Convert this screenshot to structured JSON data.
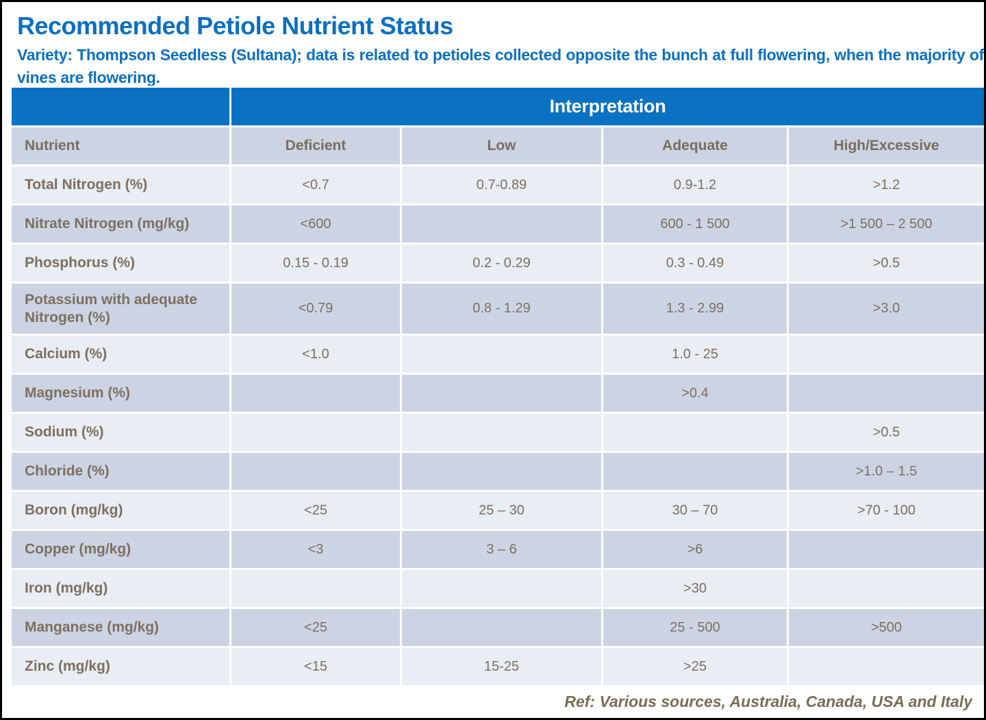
{
  "page": {
    "title": "Recommended Petiole Nutrient Status",
    "subtitle": "Variety: Thompson Seedless (Sultana); data is related to petioles collected opposite the bunch at full flowering, when the majority of vines are flowering.",
    "footer": "Ref: Various sources, Australia, Canada, USA and Italy"
  },
  "colors": {
    "header_blue": "#0A72C1",
    "title_blue": "#0A70C1",
    "row_light": "#E9EDF4",
    "row_dark": "#CCD4E4",
    "cell_text": "#7C6F5D",
    "footer_text": "#7B6B53"
  },
  "table": {
    "group_header": "Interpretation",
    "columns": [
      "Nutrient",
      "Deficient",
      "Low",
      "Adequate",
      "High/Excessive"
    ],
    "rows": [
      {
        "nutrient": "Total Nitrogen (%)",
        "deficient": "<0.7",
        "low": "0.7-0.89",
        "adequate": "0.9-1.2",
        "high": ">1.2"
      },
      {
        "nutrient": "Nitrate Nitrogen (mg/kg)",
        "deficient": "<600",
        "low": "",
        "adequate": "600 - 1 500",
        "high": ">1 500 – 2 500"
      },
      {
        "nutrient": "Phosphorus (%)",
        "deficient": "0.15 - 0.19",
        "low": "0.2 - 0.29",
        "adequate": "0.3 - 0.49",
        "high": ">0.5"
      },
      {
        "nutrient": "Potassium with adequate Nitrogen (%)",
        "deficient": "<0.79",
        "low": "0.8 - 1.29",
        "adequate": "1.3 - 2.99",
        "high": ">3.0"
      },
      {
        "nutrient": "Calcium (%)",
        "deficient": "<1.0",
        "low": "",
        "adequate": "1.0 - 25",
        "high": ""
      },
      {
        "nutrient": "Magnesium (%)",
        "deficient": "",
        "low": "",
        "adequate": ">0.4",
        "high": ""
      },
      {
        "nutrient": "Sodium (%)",
        "deficient": "",
        "low": "",
        "adequate": "",
        "high": ">0.5"
      },
      {
        "nutrient": "Chloride (%)",
        "deficient": "",
        "low": "",
        "adequate": "",
        "high": ">1.0 – 1.5"
      },
      {
        "nutrient": "Boron (mg/kg)",
        "deficient": "<25",
        "low": "25 – 30",
        "adequate": "30 – 70",
        "high": ">70 - 100"
      },
      {
        "nutrient": "Copper (mg/kg)",
        "deficient": "<3",
        "low": "3 – 6",
        "adequate": ">6",
        "high": ""
      },
      {
        "nutrient": "Iron (mg/kg)",
        "deficient": "",
        "low": "",
        "adequate": ">30",
        "high": ""
      },
      {
        "nutrient": "Manganese (mg/kg)",
        "deficient": "<25",
        "low": "",
        "adequate": "25 - 500",
        "high": ">500"
      },
      {
        "nutrient": "Zinc (mg/kg)",
        "deficient": "<15",
        "low": "15-25",
        "adequate": ">25",
        "high": ""
      }
    ]
  }
}
